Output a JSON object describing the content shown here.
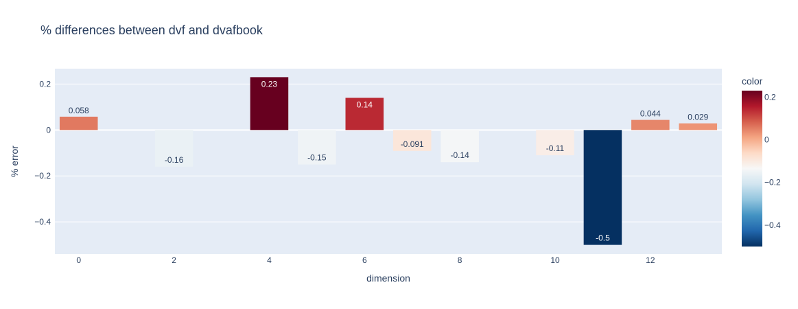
{
  "chart_data": {
    "type": "bar",
    "title": "% differences between dvf and dvafbook",
    "xlabel": "dimension",
    "ylabel": "% error",
    "x": [
      0,
      1,
      2,
      3,
      4,
      5,
      6,
      7,
      8,
      9,
      10,
      11,
      12,
      13
    ],
    "values": [
      0.058,
      0.0,
      -0.16,
      0.0,
      0.23,
      -0.15,
      0.14,
      -0.091,
      -0.14,
      0.0,
      -0.11,
      -0.5,
      0.044,
      0.029
    ],
    "labels": [
      "0.058",
      "",
      "-0.16",
      "",
      "0.23",
      "-0.15",
      "0.14",
      "-0.091",
      "-0.14",
      "",
      "-0.11",
      "-0.5",
      "0.044",
      "0.029"
    ],
    "xticks": [
      0,
      2,
      4,
      6,
      8,
      10,
      12
    ],
    "yticks": [
      0.2,
      0,
      -0.2,
      -0.4
    ],
    "ytick_labels": [
      "0.2",
      "0",
      "−0.2",
      "−0.4"
    ],
    "xlim": [
      -0.5,
      13.5
    ],
    "ylim": [
      -0.54,
      0.267
    ],
    "grid": true,
    "colorbar": {
      "title": "color",
      "range": [
        -0.5,
        0.23
      ],
      "ticks": [
        0.2,
        0,
        -0.2,
        -0.4
      ],
      "tick_labels": [
        "0.2",
        "0",
        "−0.2",
        "−0.4"
      ],
      "colorscale": [
        "#053061",
        "#2166ac",
        "#4393c3",
        "#92c5de",
        "#d1e5f0",
        "#f7f7f7",
        "#fddbc7",
        "#f4a582",
        "#d6604d",
        "#b2182b",
        "#67001f"
      ]
    },
    "colors": {
      "plot_background": "#e5ecf6",
      "grid": "#ffffff",
      "text": "#2a3f5f"
    }
  }
}
